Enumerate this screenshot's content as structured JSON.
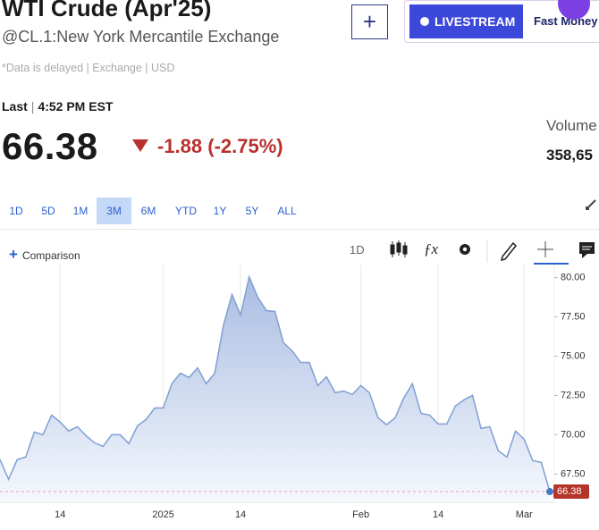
{
  "header": {
    "title": "WTI Crude (Apr'25)",
    "exchange": "@CL.1:New York Mercantile Exchange",
    "notice": "*Data is delayed | Exchange | USD",
    "last_label": "Last",
    "last_time": "4:52 PM EST",
    "price": "66.38",
    "change": "-1.88 (-2.75%)",
    "volume_label": "Volume",
    "volume": "358,65",
    "livestream": "LIVESTREAM",
    "show": "Fast Money"
  },
  "ranges": [
    "1D",
    "5D",
    "1M",
    "3M",
    "6M",
    "YTD",
    "1Y",
    "5Y",
    "ALL"
  ],
  "selected_range": "3M",
  "toolbar": {
    "comparison": "Comparison",
    "interval": "1D"
  },
  "chart_data": {
    "type": "area",
    "color": "#7f9fd4",
    "marker_color": "#b5352a",
    "categories": [
      null,
      null,
      null,
      null,
      null,
      null,
      null,
      "14",
      null,
      null,
      null,
      null,
      null,
      null,
      null,
      null,
      null,
      null,
      null,
      "2025",
      null,
      null,
      null,
      null,
      null,
      null,
      null,
      null,
      "14",
      null,
      null,
      null,
      null,
      null,
      null,
      null,
      null,
      null,
      null,
      null,
      null,
      null,
      "Feb",
      null,
      null,
      null,
      null,
      null,
      null,
      null,
      null,
      "14",
      null,
      null,
      null,
      null,
      null,
      null,
      null,
      null,
      null,
      "Mar",
      null,
      null,
      null
    ],
    "values": [
      68.41,
      67.16,
      68.41,
      68.58,
      70.17,
      70.0,
      71.25,
      70.8,
      70.23,
      70.51,
      69.94,
      69.49,
      69.26,
      70.0,
      70.0,
      69.43,
      70.57,
      70.97,
      71.7,
      71.7,
      73.24,
      73.92,
      73.64,
      74.26,
      73.24,
      73.92,
      76.93,
      78.92,
      77.61,
      80.04,
      78.75,
      77.9,
      77.84,
      75.85,
      75.34,
      74.6,
      74.6,
      73.13,
      73.69,
      72.67,
      72.78,
      72.56,
      73.13,
      72.67,
      71.08,
      70.63,
      71.08,
      72.33,
      73.24,
      71.36,
      71.25,
      70.68,
      70.68,
      71.82,
      72.22,
      72.5,
      70.4,
      70.51,
      68.98,
      68.58,
      70.23,
      69.72,
      68.35,
      68.24,
      66.38
    ],
    "ylim": [
      65.7,
      80.6
    ],
    "yticks": [
      {
        "value": 67.5,
        "label": "67.50"
      },
      {
        "value": 70,
        "label": "70.00"
      },
      {
        "value": 72.5,
        "label": "72.50"
      },
      {
        "value": 75,
        "label": "75.00"
      },
      {
        "value": 77.5,
        "label": "77.50"
      },
      {
        "value": 80,
        "label": "80.00"
      }
    ],
    "grid": true
  }
}
